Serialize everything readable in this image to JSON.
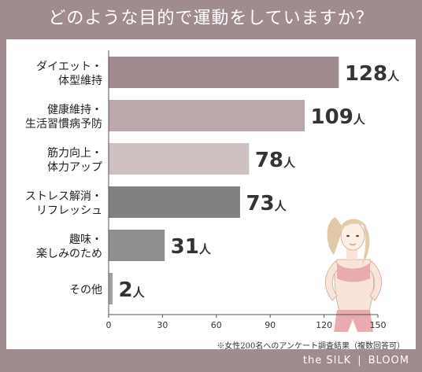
{
  "title": "どのような目的で運動をしていますか？",
  "note": "※女性200名へのアンケート調査結果（複数回答可）",
  "brand": {
    "left": "the SILK",
    "sep": "|",
    "right": "BLOOM"
  },
  "colors": {
    "background": "#a08b8f",
    "bars": [
      "#a18a8e",
      "#bba8ab",
      "#cfc0c2",
      "#818181",
      "#8f8f8f",
      "#a3a3a3"
    ]
  },
  "chart_data": {
    "type": "bar",
    "orientation": "horizontal",
    "categories": [
      [
        "ダイエット・",
        "体型維持"
      ],
      [
        "健康維持・",
        "生活習慣病予防"
      ],
      [
        "筋力向上・",
        "体力アップ"
      ],
      [
        "ストレス解消・",
        "リフレッシュ"
      ],
      [
        "趣味・",
        "楽しみのため"
      ],
      [
        "その他"
      ]
    ],
    "values": [
      128,
      109,
      78,
      73,
      31,
      2
    ],
    "value_unit": "人",
    "xlim": [
      0,
      150
    ],
    "xticks": [
      0,
      30,
      60,
      90,
      120,
      150
    ],
    "grid": false
  }
}
